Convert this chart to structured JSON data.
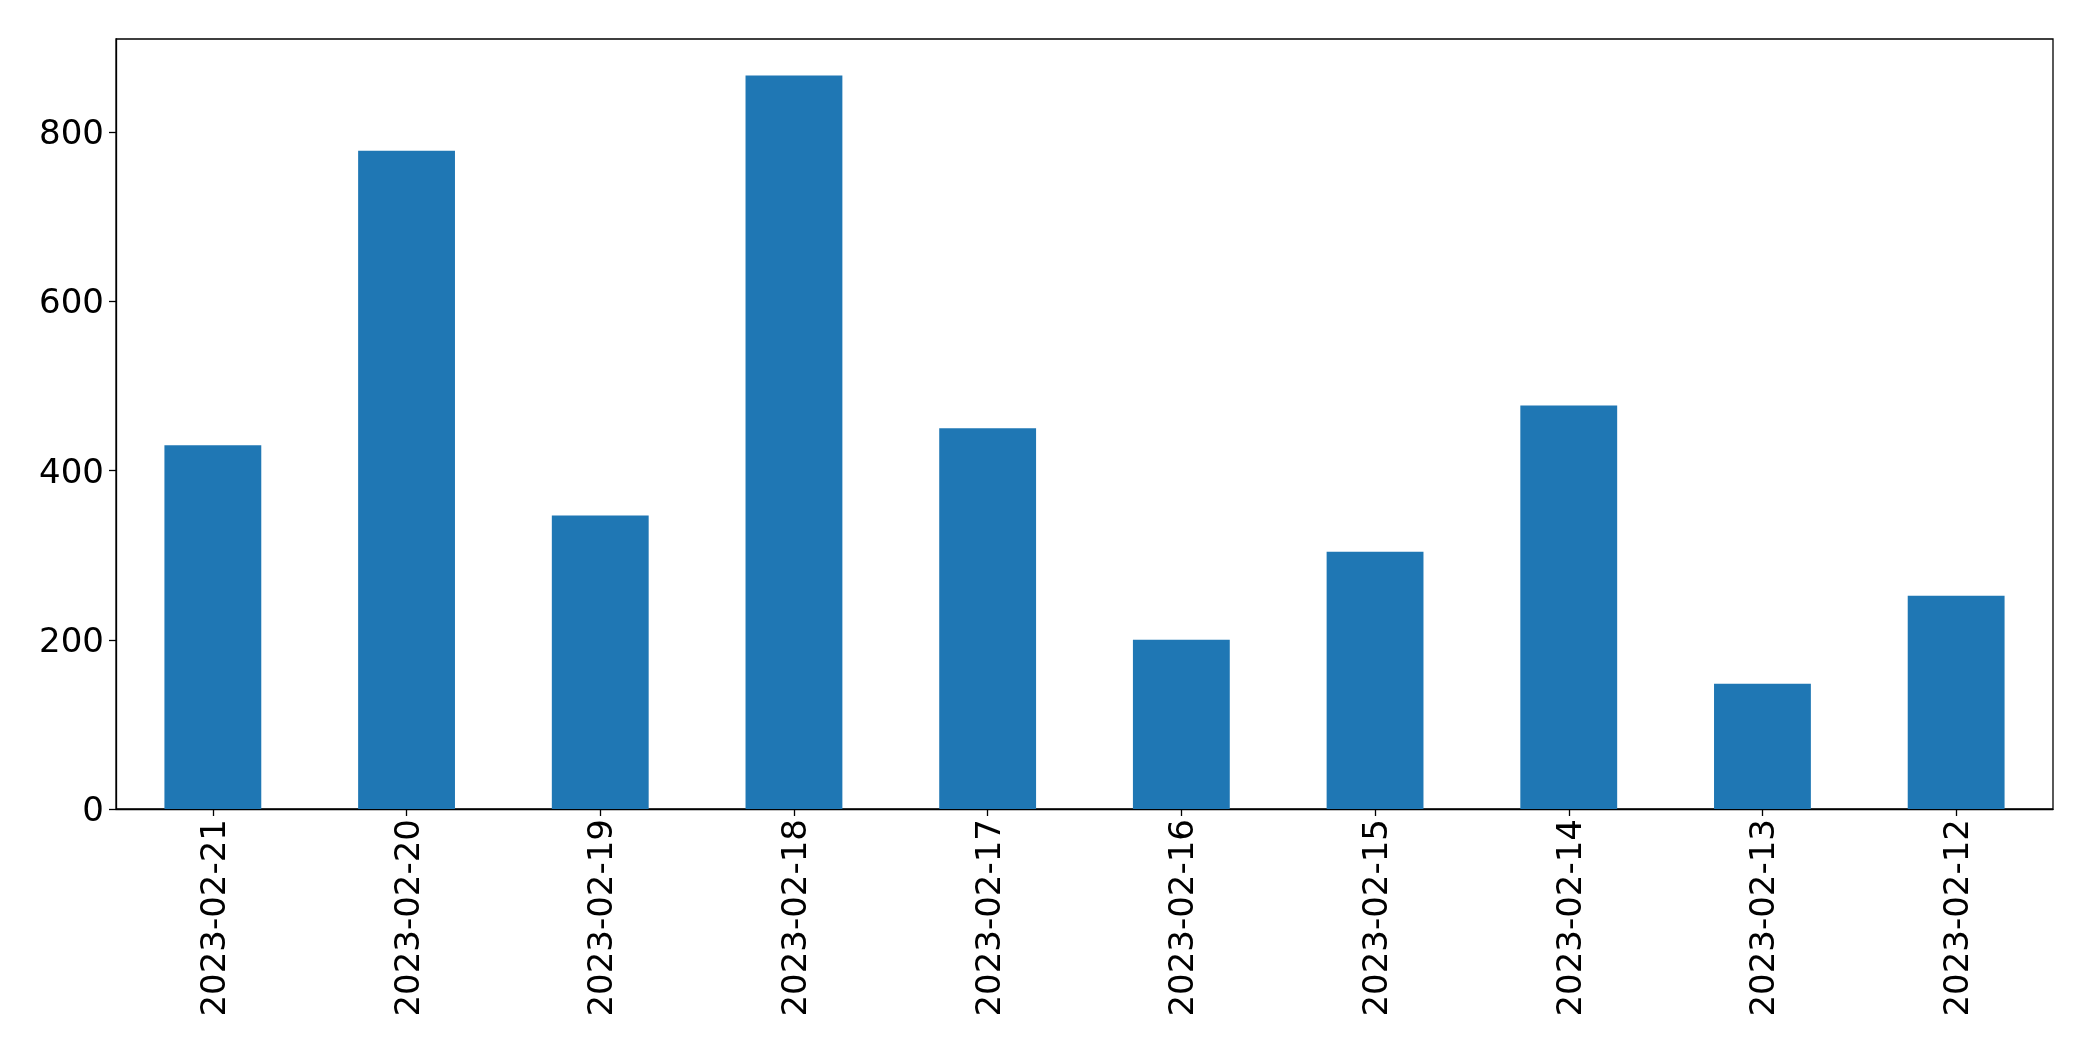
{
  "chart_data": {
    "type": "bar",
    "categories": [
      "2023-02-21",
      "2023-02-20",
      "2023-02-19",
      "2023-02-18",
      "2023-02-17",
      "2023-02-16",
      "2023-02-15",
      "2023-02-14",
      "2023-02-13",
      "2023-02-12"
    ],
    "values": [
      430,
      778,
      347,
      867,
      450,
      200,
      304,
      477,
      148,
      252
    ],
    "color": "#1f77b4",
    "ylim": [
      0,
      910
    ],
    "yticks": [
      0,
      200,
      400,
      600,
      800
    ],
    "grid": false
  }
}
